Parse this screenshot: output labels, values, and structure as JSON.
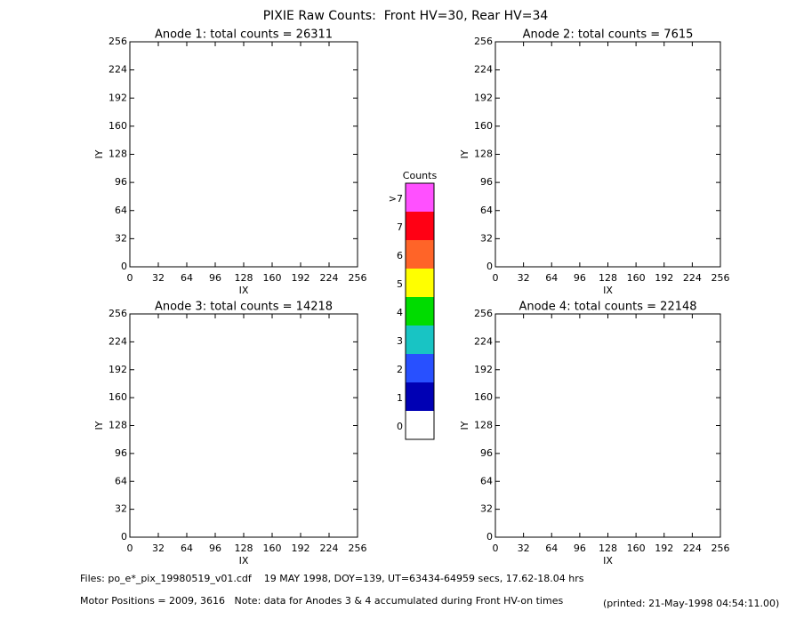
{
  "title": "PIXIE Raw Counts:  Front HV=30, Rear HV=34",
  "chart_data": [
    {
      "type": "heatmap",
      "title": "Anode 1: total counts = 26311",
      "xlabel": "IX",
      "ylabel": "IY",
      "xlim": [
        0,
        256
      ],
      "ylim": [
        0,
        256
      ],
      "xticks": [
        0,
        32,
        64,
        96,
        128,
        160,
        192,
        224,
        256
      ],
      "yticks": [
        0,
        32,
        64,
        96,
        128,
        160,
        192,
        224,
        256
      ]
    },
    {
      "type": "heatmap",
      "title": "Anode 2: total counts = 7615",
      "xlabel": "IX",
      "ylabel": "IY",
      "xlim": [
        0,
        256
      ],
      "ylim": [
        0,
        256
      ],
      "xticks": [
        0,
        32,
        64,
        96,
        128,
        160,
        192,
        224,
        256
      ],
      "yticks": [
        0,
        32,
        64,
        96,
        128,
        160,
        192,
        224,
        256
      ]
    },
    {
      "type": "heatmap",
      "title": "Anode 3: total counts = 14218",
      "xlabel": "IX",
      "ylabel": "IY",
      "xlim": [
        0,
        256
      ],
      "ylim": [
        0,
        256
      ],
      "xticks": [
        0,
        32,
        64,
        96,
        128,
        160,
        192,
        224,
        256
      ],
      "yticks": [
        0,
        32,
        64,
        96,
        128,
        160,
        192,
        224,
        256
      ]
    },
    {
      "type": "heatmap",
      "title": "Anode 4: total counts = 22148",
      "xlabel": "IX",
      "ylabel": "IY",
      "xlim": [
        0,
        256
      ],
      "ylim": [
        0,
        256
      ],
      "xticks": [
        0,
        32,
        64,
        96,
        128,
        160,
        192,
        224,
        256
      ],
      "yticks": [
        0,
        32,
        64,
        96,
        128,
        160,
        192,
        224,
        256
      ]
    },
    {
      "type": "colorbar",
      "title": "Counts",
      "categories": [
        "0",
        "1",
        "2",
        "3",
        "4",
        "5",
        "6",
        "7",
        ">7"
      ],
      "colors": [
        "#ffffff",
        "#0000b4",
        "#2850ff",
        "#18c4c4",
        "#00dc00",
        "#ffff00",
        "#ff6428",
        "#ff0014",
        "#ff50ff"
      ]
    }
  ],
  "footer": {
    "files": "Files: po_e*_pix_19980519_v01.cdf    19 MAY 1998, DOY=139, UT=63434-64959 secs, 17.62-18.04 hrs",
    "note": "Motor Positions = 2009, 3616   Note: data for Anodes 3 & 4 accumulated during Front HV-on times",
    "printed": "(printed: 21-May-1998 04:54:11.00)"
  }
}
